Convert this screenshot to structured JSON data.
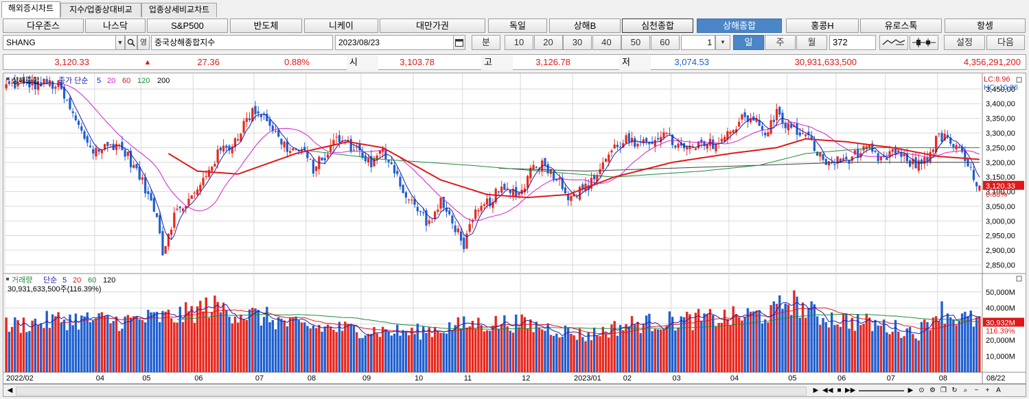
{
  "tabs": [
    "해외증시차트",
    "지수/업종상대비교",
    "업종상세비교차트"
  ],
  "indices": [
    "다우존스",
    "나스닥",
    "S&P500",
    "반도체",
    "니케이",
    "대만가권",
    "독일",
    "상해B",
    "심천종합",
    "상해종합",
    "홍콩H",
    "유로스톡",
    "항셍"
  ],
  "selected_index": "상해종합",
  "toolbar": {
    "symbol": "SHANG",
    "name": "중국상해종합지수",
    "name_icon": "영",
    "date": "2023/08/23",
    "unit_label": "분",
    "minute_options": [
      "10",
      "20",
      "30",
      "40",
      "50",
      "60"
    ],
    "interval_value": "1",
    "period_options": [
      "일",
      "주",
      "월"
    ],
    "selected_period": "일",
    "count": "372",
    "settings_label": "설정",
    "next_label": "다음"
  },
  "quote": {
    "price": "3,120.33",
    "arrow": "▲",
    "change": "27.36",
    "change_pct": "0.88%",
    "open_label": "시",
    "open": "3,103.78",
    "high_label": "고",
    "high": "3,126.78",
    "low_label": "저",
    "low": "3,074.53",
    "volume": "30,931,633,500",
    "amount": "4,356,291,200"
  },
  "price_legend": {
    "series": "상해종합",
    "ma_label": "종가 단순",
    "periods": [
      "5",
      "20",
      "60",
      "120",
      "200"
    ]
  },
  "volume_legend": {
    "series": "거래량",
    "ma_label": "단순",
    "periods": [
      "5",
      "20",
      "60",
      "120"
    ],
    "value": "30,931,633,500주(116.39%)"
  },
  "lc_hc": {
    "lc": "LC:8.96",
    "hc": "HC:-10.86"
  },
  "colors": {
    "up": "#e8281e",
    "down": "#1f5fcf",
    "ma5": "#1c1cb4",
    "ma20": "#d21ed2",
    "ma60": "#e01818",
    "ma120": "#1a8c3a",
    "ma200": "#3a3a3a",
    "grid": "#d8d8d8"
  },
  "chart_data": {
    "type": "candlestick",
    "y_ticks": [
      "3,450,00",
      "3,400,00",
      "3,350,00",
      "3,300,00",
      "3,250,00",
      "3,200,00",
      "3,150,00",
      "3,100,00",
      "3,050,00",
      "3,000,00",
      "2,950,00",
      "2,900,00",
      "2,850,00"
    ],
    "y_tick_values": [
      3450,
      3400,
      3350,
      3300,
      3250,
      3200,
      3150,
      3100,
      3050,
      3000,
      2950,
      2900,
      2850
    ],
    "ylim": [
      2830,
      3480
    ],
    "last_price_label": "3,120.33",
    "last_pct_label": "0.88%",
    "x_labels": [
      "2022/02",
      "04",
      "05",
      "06",
      "07",
      "08",
      "09",
      "10",
      "11",
      "12",
      "2023/01",
      "02",
      "03",
      "04",
      "05",
      "06",
      "07",
      "08"
    ],
    "x_label_index": [
      0,
      31,
      47,
      65,
      86,
      104,
      123,
      141,
      158,
      178,
      196,
      213,
      230,
      250,
      270,
      287,
      304,
      322
    ],
    "n_days": 337,
    "date_label_right": "08/22",
    "anchors": [
      [
        0,
        3460
      ],
      [
        5,
        3470
      ],
      [
        10,
        3465
      ],
      [
        14,
        3470
      ],
      [
        18,
        3460
      ],
      [
        22,
        3380
      ],
      [
        26,
        3300
      ],
      [
        30,
        3240
      ],
      [
        34,
        3250
      ],
      [
        38,
        3265
      ],
      [
        42,
        3220
      ],
      [
        46,
        3150
      ],
      [
        49,
        3085
      ],
      [
        52,
        3030
      ],
      [
        54,
        2890
      ],
      [
        56,
        2960
      ],
      [
        58,
        3020
      ],
      [
        62,
        3060
      ],
      [
        66,
        3100
      ],
      [
        70,
        3180
      ],
      [
        74,
        3240
      ],
      [
        78,
        3260
      ],
      [
        82,
        3330
      ],
      [
        86,
        3380
      ],
      [
        90,
        3350
      ],
      [
        94,
        3280
      ],
      [
        98,
        3240
      ],
      [
        102,
        3240
      ],
      [
        106,
        3180
      ],
      [
        110,
        3220
      ],
      [
        114,
        3280
      ],
      [
        118,
        3260
      ],
      [
        122,
        3240
      ],
      [
        126,
        3190
      ],
      [
        130,
        3240
      ],
      [
        134,
        3180
      ],
      [
        138,
        3080
      ],
      [
        142,
        3040
      ],
      [
        146,
        2990
      ],
      [
        150,
        3060
      ],
      [
        154,
        3000
      ],
      [
        158,
        2920
      ],
      [
        162,
        3020
      ],
      [
        166,
        3060
      ],
      [
        170,
        3100
      ],
      [
        174,
        3100
      ],
      [
        178,
        3100
      ],
      [
        182,
        3200
      ],
      [
        186,
        3190
      ],
      [
        190,
        3150
      ],
      [
        194,
        3090
      ],
      [
        198,
        3100
      ],
      [
        202,
        3130
      ],
      [
        206,
        3200
      ],
      [
        210,
        3250
      ],
      [
        214,
        3280
      ],
      [
        218,
        3250
      ],
      [
        222,
        3270
      ],
      [
        226,
        3300
      ],
      [
        230,
        3270
      ],
      [
        234,
        3240
      ],
      [
        238,
        3250
      ],
      [
        242,
        3260
      ],
      [
        246,
        3270
      ],
      [
        250,
        3300
      ],
      [
        254,
        3360
      ],
      [
        258,
        3350
      ],
      [
        262,
        3290
      ],
      [
        266,
        3370
      ],
      [
        270,
        3320
      ],
      [
        274,
        3300
      ],
      [
        278,
        3270
      ],
      [
        282,
        3200
      ],
      [
        286,
        3200
      ],
      [
        290,
        3210
      ],
      [
        294,
        3230
      ],
      [
        298,
        3240
      ],
      [
        302,
        3200
      ],
      [
        306,
        3240
      ],
      [
        310,
        3210
      ],
      [
        314,
        3190
      ],
      [
        318,
        3220
      ],
      [
        322,
        3290
      ],
      [
        326,
        3270
      ],
      [
        330,
        3220
      ],
      [
        334,
        3150
      ],
      [
        336,
        3120
      ]
    ],
    "ma60_anchors": [
      [
        56,
        3230
      ],
      [
        66,
        3170
      ],
      [
        80,
        3160
      ],
      [
        100,
        3230
      ],
      [
        118,
        3270
      ],
      [
        130,
        3250
      ],
      [
        150,
        3140
      ],
      [
        166,
        3090
      ],
      [
        180,
        3080
      ],
      [
        194,
        3090
      ],
      [
        210,
        3150
      ],
      [
        230,
        3200
      ],
      [
        250,
        3230
      ],
      [
        266,
        3250
      ],
      [
        276,
        3280
      ],
      [
        290,
        3270
      ],
      [
        306,
        3250
      ],
      [
        322,
        3220
      ],
      [
        336,
        3210
      ]
    ],
    "ma120_anchors": [
      [
        104,
        3240
      ],
      [
        130,
        3210
      ],
      [
        160,
        3190
      ],
      [
        184,
        3170
      ],
      [
        210,
        3150
      ],
      [
        240,
        3170
      ],
      [
        260,
        3190
      ],
      [
        276,
        3230
      ],
      [
        300,
        3250
      ],
      [
        336,
        3250
      ]
    ],
    "ma200_anchors": [
      [
        170,
        3180
      ],
      [
        200,
        3170
      ],
      [
        230,
        3180
      ],
      [
        260,
        3190
      ],
      [
        290,
        3200
      ],
      [
        320,
        3200
      ],
      [
        336,
        3200
      ]
    ],
    "volume": {
      "y_ticks": [
        "50,000M",
        "40,000M",
        "30,000M",
        "20,000M",
        "10,000M"
      ],
      "y_tick_values": [
        50000,
        40000,
        30000,
        20000,
        10000
      ],
      "ylim": [
        0,
        58000
      ],
      "last_label": "30,932M",
      "last_pct": "116.39%",
      "anchors": [
        [
          0,
          28000
        ],
        [
          20,
          32000
        ],
        [
          40,
          31000
        ],
        [
          60,
          34000
        ],
        [
          70,
          40000
        ],
        [
          80,
          36000
        ],
        [
          90,
          33000
        ],
        [
          100,
          28000
        ],
        [
          120,
          26000
        ],
        [
          140,
          24000
        ],
        [
          160,
          29000
        ],
        [
          175,
          30000
        ],
        [
          190,
          26000
        ],
        [
          200,
          22000
        ],
        [
          215,
          29000
        ],
        [
          230,
          31000
        ],
        [
          250,
          33000
        ],
        [
          265,
          36000
        ],
        [
          270,
          44000
        ],
        [
          280,
          34000
        ],
        [
          300,
          29000
        ],
        [
          315,
          24000
        ],
        [
          322,
          38000
        ],
        [
          328,
          33000
        ],
        [
          336,
          30932
        ]
      ]
    }
  }
}
